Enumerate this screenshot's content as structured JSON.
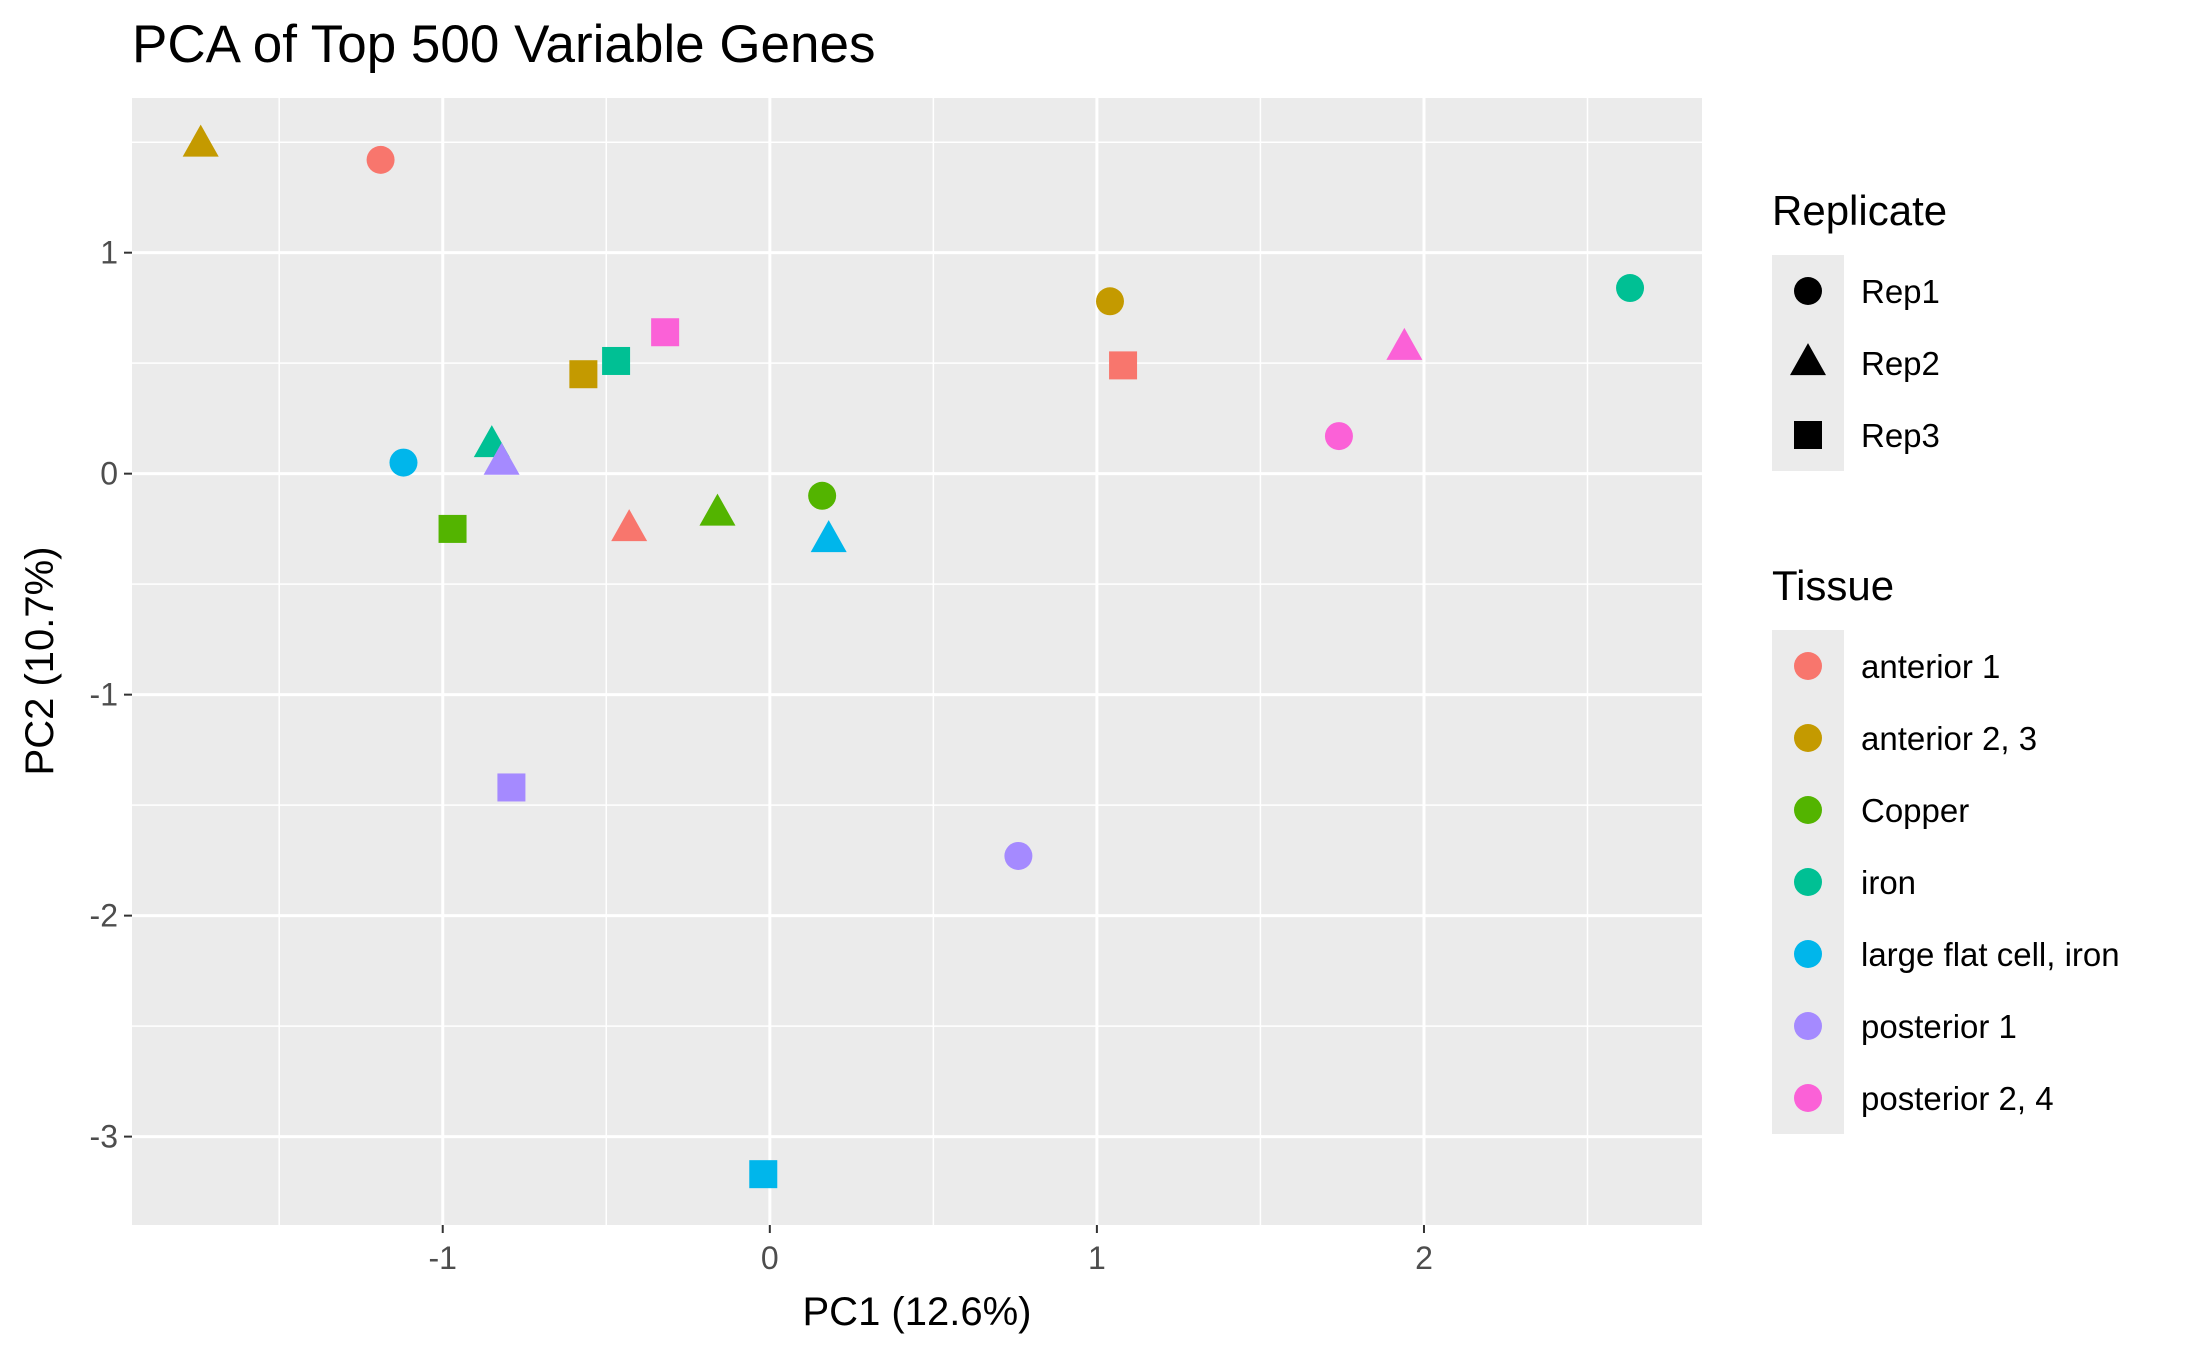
{
  "chart_data": {
    "type": "scatter",
    "title": "PCA of Top 500 Variable Genes",
    "xlabel": "PC1 (12.6%)",
    "ylabel": "PC2 (10.7%)",
    "xlim": [
      -1.95,
      2.85
    ],
    "ylim": [
      -3.4,
      1.7
    ],
    "x_ticks": [
      -1,
      0,
      1,
      2
    ],
    "y_ticks": [
      -3,
      -2,
      -1,
      0,
      1
    ],
    "grid": true,
    "legend_position": "right",
    "legend_replicate": {
      "title": "Replicate",
      "entries": [
        {
          "label": "Rep1",
          "shape": "circle"
        },
        {
          "label": "Rep2",
          "shape": "triangle"
        },
        {
          "label": "Rep3",
          "shape": "square"
        }
      ]
    },
    "legend_tissue": {
      "title": "Tissue",
      "entries": [
        {
          "label": "anterior 1",
          "color": "#F8766D"
        },
        {
          "label": "anterior 2, 3",
          "color": "#C49A00"
        },
        {
          "label": "Copper",
          "color": "#53B400"
        },
        {
          "label": "iron",
          "color": "#00C094"
        },
        {
          "label": "large flat cell, iron",
          "color": "#00B6EB"
        },
        {
          "label": "posterior 1",
          "color": "#A58AFF"
        },
        {
          "label": "posterior 2, 4",
          "color": "#FB61D7"
        }
      ]
    },
    "points": [
      {
        "x": -1.19,
        "y": 1.42,
        "tissue": "anterior 1",
        "replicate": "Rep1"
      },
      {
        "x": -0.43,
        "y": -0.25,
        "tissue": "anterior 1",
        "replicate": "Rep2"
      },
      {
        "x": 1.08,
        "y": 0.49,
        "tissue": "anterior 1",
        "replicate": "Rep3"
      },
      {
        "x": 1.04,
        "y": 0.78,
        "tissue": "anterior 2, 3",
        "replicate": "Rep1"
      },
      {
        "x": -1.74,
        "y": 1.49,
        "tissue": "anterior 2, 3",
        "replicate": "Rep2"
      },
      {
        "x": -0.57,
        "y": 0.45,
        "tissue": "anterior 2, 3",
        "replicate": "Rep3"
      },
      {
        "x": 0.16,
        "y": -0.1,
        "tissue": "Copper",
        "replicate": "Rep1"
      },
      {
        "x": -0.16,
        "y": -0.18,
        "tissue": "Copper",
        "replicate": "Rep2"
      },
      {
        "x": -0.97,
        "y": -0.25,
        "tissue": "Copper",
        "replicate": "Rep3"
      },
      {
        "x": 2.63,
        "y": 0.84,
        "tissue": "iron",
        "replicate": "Rep1"
      },
      {
        "x": -0.85,
        "y": 0.13,
        "tissue": "iron",
        "replicate": "Rep2"
      },
      {
        "x": -0.47,
        "y": 0.51,
        "tissue": "iron",
        "replicate": "Rep3"
      },
      {
        "x": -1.12,
        "y": 0.05,
        "tissue": "large flat cell, iron",
        "replicate": "Rep1"
      },
      {
        "x": 0.18,
        "y": -0.3,
        "tissue": "large flat cell, iron",
        "replicate": "Rep2"
      },
      {
        "x": -0.02,
        "y": -3.17,
        "tissue": "large flat cell, iron",
        "replicate": "Rep3"
      },
      {
        "x": 0.76,
        "y": -1.73,
        "tissue": "posterior 1",
        "replicate": "Rep1"
      },
      {
        "x": -0.82,
        "y": 0.05,
        "tissue": "posterior 1",
        "replicate": "Rep2"
      },
      {
        "x": -0.79,
        "y": -1.42,
        "tissue": "posterior 1",
        "replicate": "Rep3"
      },
      {
        "x": 1.74,
        "y": 0.17,
        "tissue": "posterior 2, 4",
        "replicate": "Rep1"
      },
      {
        "x": 1.94,
        "y": 0.57,
        "tissue": "posterior 2, 4",
        "replicate": "Rep2"
      },
      {
        "x": -0.32,
        "y": 0.64,
        "tissue": "posterior 2, 4",
        "replicate": "Rep3"
      }
    ]
  }
}
